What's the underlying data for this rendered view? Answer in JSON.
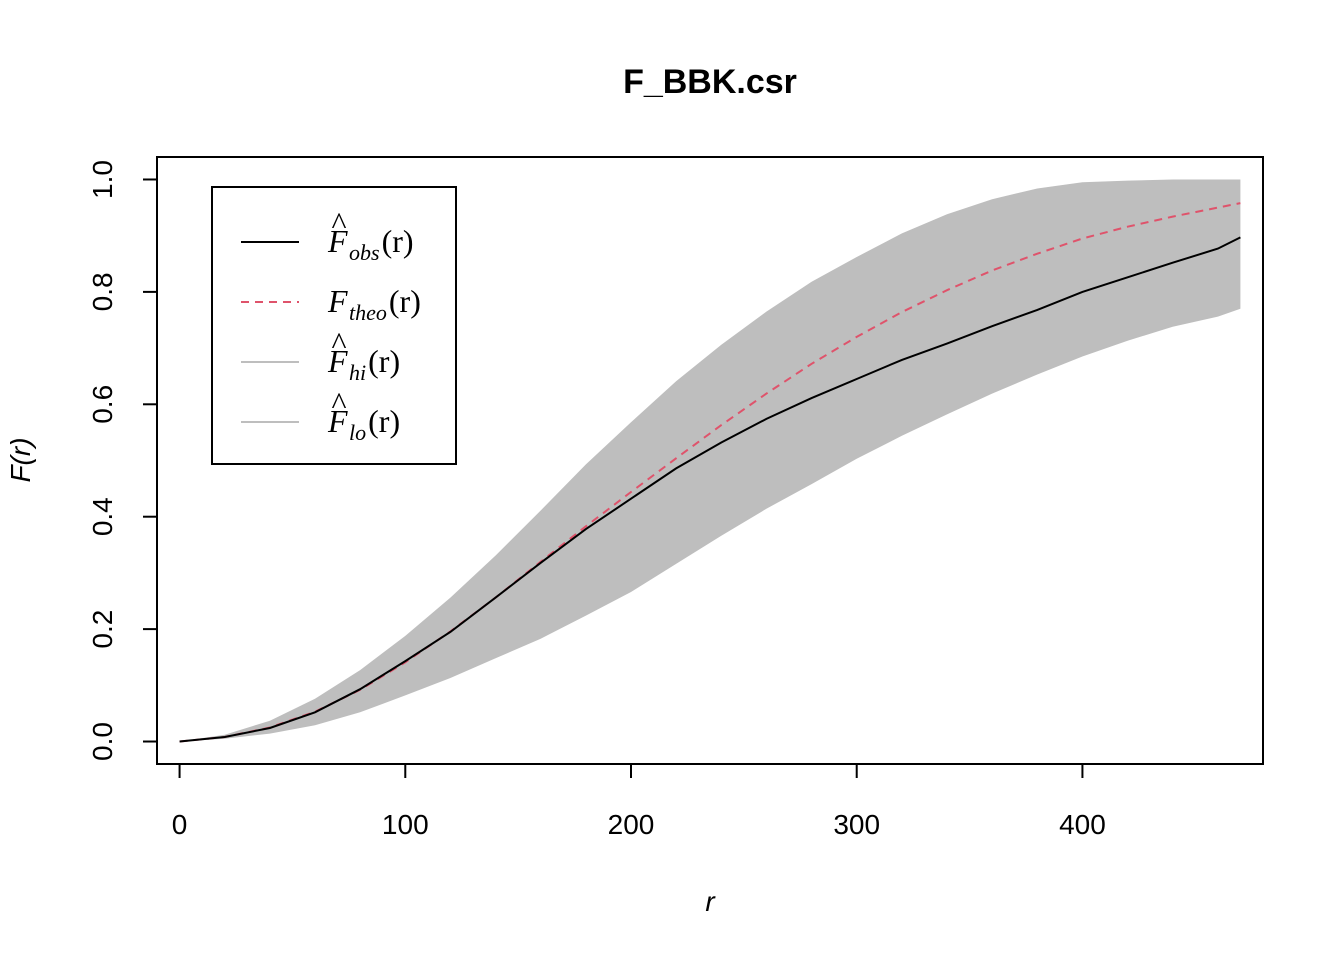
{
  "chart_data": {
    "type": "line",
    "title": "F_BBK.csr",
    "xlabel": "r",
    "ylabel": "F(r)",
    "xlim": [
      -10,
      480
    ],
    "ylim": [
      -0.04,
      1.04
    ],
    "x_ticks": [
      0,
      100,
      200,
      300,
      400
    ],
    "y_ticks": [
      0.0,
      0.2,
      0.4,
      0.6,
      0.8,
      1.0
    ],
    "x_tick_labels": [
      "0",
      "100",
      "200",
      "300",
      "400"
    ],
    "y_tick_labels": [
      "0.0",
      "0.2",
      "0.4",
      "0.6",
      "0.8",
      "1.0"
    ],
    "legend_position": "top-left",
    "x": [
      0,
      20,
      40,
      60,
      80,
      100,
      120,
      140,
      160,
      180,
      200,
      220,
      240,
      260,
      280,
      300,
      320,
      340,
      360,
      380,
      400,
      420,
      440,
      460,
      470
    ],
    "series": [
      {
        "name": "obs",
        "legend_label": {
          "main": "F",
          "hat": "^",
          "sub": "obs",
          "arg": "(r)"
        },
        "color": "#000000",
        "dash": "solid",
        "values": [
          0.0,
          0.008,
          0.024,
          0.052,
          0.093,
          0.143,
          0.195,
          0.256,
          0.318,
          0.378,
          0.432,
          0.486,
          0.532,
          0.574,
          0.611,
          0.645,
          0.679,
          0.708,
          0.739,
          0.768,
          0.8,
          0.826,
          0.852,
          0.877,
          0.897
        ]
      },
      {
        "name": "theo",
        "legend_label": {
          "main": "F",
          "hat": "",
          "sub": "theo",
          "arg": "(r)"
        },
        "color": "#df536b",
        "dash": "dashed",
        "values": [
          0.0,
          0.008,
          0.025,
          0.053,
          0.092,
          0.141,
          0.196,
          0.256,
          0.32,
          0.383,
          0.444,
          0.504,
          0.563,
          0.619,
          0.672,
          0.72,
          0.764,
          0.803,
          0.838,
          0.868,
          0.895,
          0.916,
          0.934,
          0.95,
          0.958
        ]
      },
      {
        "name": "hi",
        "legend_label": {
          "main": "F",
          "hat": "^",
          "sub": "hi",
          "arg": "(r)"
        },
        "color": "#bebebe",
        "dash": "solid",
        "values": [
          0.0,
          0.012,
          0.037,
          0.076,
          0.127,
          0.188,
          0.256,
          0.331,
          0.411,
          0.493,
          0.568,
          0.641,
          0.706,
          0.765,
          0.818,
          0.862,
          0.904,
          0.938,
          0.965,
          0.984,
          0.995,
          0.998,
          1.0,
          1.0,
          1.0
        ]
      },
      {
        "name": "lo",
        "legend_label": {
          "main": "F",
          "hat": "^",
          "sub": "lo",
          "arg": "(r)"
        },
        "color": "#bebebe",
        "dash": "solid",
        "values": [
          0.0,
          0.005,
          0.014,
          0.029,
          0.052,
          0.082,
          0.113,
          0.148,
          0.183,
          0.224,
          0.266,
          0.316,
          0.366,
          0.414,
          0.458,
          0.503,
          0.544,
          0.582,
          0.619,
          0.653,
          0.685,
          0.713,
          0.738,
          0.756,
          0.77
        ]
      }
    ],
    "envelope_fill": "#bebebe"
  }
}
